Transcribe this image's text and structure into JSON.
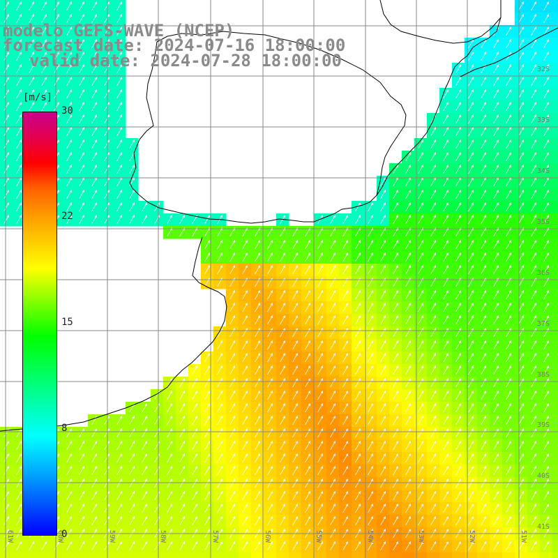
{
  "title": {
    "line1": "modelo GEFS-WAVE (NCEP)",
    "line2": "forecast date: 2024-07-16 18:00:00",
    "line3": "valid date: 2024-07-28 18:00:00"
  },
  "colorbar": {
    "unit": "[m/s]",
    "ticks": [
      "30",
      "22",
      "15",
      "8",
      "0"
    ],
    "range": [
      0,
      30
    ],
    "colors": [
      "#0000ff",
      "#00a0ff",
      "#00ffff",
      "#00ff00",
      "#80ff00",
      "#ffff00",
      "#ffa000",
      "#ff6000",
      "#ff0000",
      "#c8008c"
    ]
  },
  "map": {
    "lon_range": [
      -62,
      -51
    ],
    "lat_range": [
      -41.3,
      -30.4
    ],
    "lat_labels": [
      "32S",
      "33S",
      "34S",
      "35S",
      "36S",
      "37S",
      "38S",
      "39S",
      "40S",
      "41S"
    ],
    "lon_labels": [
      "61W",
      "60W",
      "59W",
      "58W",
      "57W",
      "56W",
      "55W",
      "54W",
      "53W",
      "52W",
      "51W"
    ],
    "land_color": "#ffffff",
    "grid_color": "#888888",
    "arrow_color": "#ffffff"
  }
}
